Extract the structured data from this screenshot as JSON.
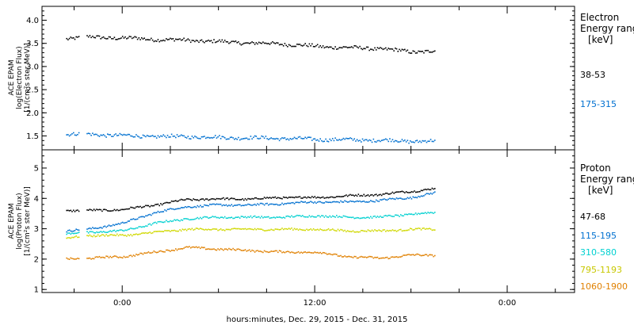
{
  "chart_data": [
    {
      "type": "scatter",
      "panel": "electron",
      "ylabel_lines": [
        "ACE EPAM",
        "log(Electron Flux)",
        "[1/(cm²s ster MeV)]"
      ],
      "ylim": [
        1.2,
        4.3
      ],
      "yticks": [
        1.5,
        2.0,
        2.5,
        3.0,
        3.5,
        4.0
      ],
      "ytick_labels": [
        "1.5",
        "2.0",
        "2.5",
        "3.0",
        "3.5",
        "4.0"
      ],
      "legend_title_lines": [
        "Electron",
        "Energy range",
        "[keV]"
      ],
      "grid": false,
      "series": [
        {
          "name": "38-53",
          "color": "#000000",
          "x": [
            -3.5,
            -2.2,
            0,
            2,
            4,
            6,
            8,
            10,
            12,
            14,
            16,
            18,
            19.5
          ],
          "y": [
            3.62,
            3.65,
            3.63,
            3.6,
            3.58,
            3.55,
            3.52,
            3.5,
            3.45,
            3.42,
            3.4,
            3.33,
            3.35
          ]
        },
        {
          "name": "175-315",
          "color": "#0070d0",
          "x": [
            -3.5,
            -2.2,
            0,
            2,
            4,
            6,
            8,
            10,
            12,
            14,
            16,
            18,
            19.5
          ],
          "y": [
            1.55,
            1.55,
            1.52,
            1.5,
            1.5,
            1.48,
            1.47,
            1.46,
            1.44,
            1.43,
            1.42,
            1.4,
            1.4
          ]
        }
      ]
    },
    {
      "type": "scatter",
      "panel": "proton",
      "ylabel_lines": [
        "ACE EPAM",
        "log(Proton Flux)",
        "[1/(cm²s ster MeV)]"
      ],
      "ylim": [
        0.9,
        5.6
      ],
      "yticks": [
        1,
        2,
        3,
        4,
        5
      ],
      "ytick_labels": [
        "1",
        "2",
        "3",
        "4",
        "5"
      ],
      "legend_title_lines": [
        "Proton",
        "Energy range",
        "[keV]"
      ],
      "grid": false,
      "series": [
        {
          "name": "47-68",
          "color": "#000000",
          "x": [
            -3.5,
            -2.2,
            0,
            2,
            4,
            6,
            8,
            10,
            12,
            14,
            16,
            18,
            19.5
          ],
          "y": [
            3.62,
            3.62,
            3.65,
            3.8,
            3.98,
            4.0,
            4.0,
            4.05,
            4.05,
            4.1,
            4.15,
            4.25,
            4.35
          ]
        },
        {
          "name": "115-195",
          "color": "#0070d0",
          "x": [
            -3.5,
            -2.2,
            0,
            2,
            4,
            6,
            8,
            10,
            12,
            14,
            16,
            18,
            19.5
          ],
          "y": [
            2.95,
            3.0,
            3.2,
            3.55,
            3.75,
            3.8,
            3.8,
            3.85,
            3.9,
            3.9,
            3.95,
            4.05,
            4.2
          ]
        },
        {
          "name": "310-580",
          "color": "#00d0d0",
          "x": [
            -3.5,
            -2.2,
            0,
            2,
            4,
            6,
            8,
            10,
            12,
            14,
            16,
            18,
            19.5
          ],
          "y": [
            2.85,
            2.9,
            2.95,
            3.2,
            3.35,
            3.4,
            3.4,
            3.4,
            3.45,
            3.4,
            3.4,
            3.5,
            3.55
          ]
        },
        {
          "name": "795-1193",
          "color": "#d0d800",
          "x": [
            -3.5,
            -2.2,
            0,
            2,
            4,
            6,
            8,
            10,
            12,
            14,
            16,
            18,
            19.5
          ],
          "y": [
            2.7,
            2.8,
            2.8,
            2.9,
            3.0,
            3.0,
            3.0,
            3.0,
            3.0,
            2.95,
            2.95,
            3.0,
            3.0
          ]
        },
        {
          "name": "1060-1900",
          "color": "#e08000",
          "x": [
            -3.5,
            -2.2,
            0,
            2,
            4,
            6,
            8,
            10,
            12,
            14,
            16,
            18,
            19.5
          ],
          "y": [
            2.02,
            2.05,
            2.1,
            2.25,
            2.4,
            2.35,
            2.3,
            2.25,
            2.25,
            2.1,
            2.05,
            2.15,
            2.15
          ]
        }
      ]
    }
  ],
  "x_axis": {
    "label": "hours:minutes, Dec. 29, 2015 - Dec. 31, 2015",
    "range_hours": [
      -5,
      28.2
    ],
    "major_ticks": [
      0,
      12,
      24
    ],
    "major_tick_labels": [
      "0:00",
      "12:00",
      "0:00"
    ],
    "minor_tick_step_hours": 3
  }
}
